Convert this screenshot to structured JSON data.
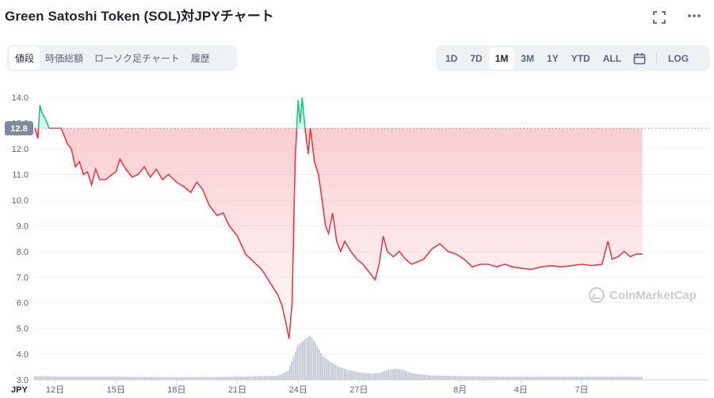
{
  "header": {
    "title": "Green Satoshi Token (SOL)対JPYチャート",
    "expand_icon": "expand-icon",
    "more_icon": "more-icon"
  },
  "tabs": [
    {
      "label": "値段",
      "active": true
    },
    {
      "label": "時価総額",
      "active": false
    },
    {
      "label": "ローソク足チャート",
      "active": false
    },
    {
      "label": "履歴",
      "active": false
    }
  ],
  "ranges": [
    {
      "label": "1D",
      "active": false
    },
    {
      "label": "7D",
      "active": false
    },
    {
      "label": "1M",
      "active": true
    },
    {
      "label": "3M",
      "active": false
    },
    {
      "label": "1Y",
      "active": false
    },
    {
      "label": "YTD",
      "active": false
    },
    {
      "label": "ALL",
      "active": false
    }
  ],
  "calendar_icon": "calendar-icon",
  "log_label": "LOG",
  "watermark": "CoinMarketCap",
  "colors": {
    "up": "#16c784",
    "down": "#ea3943",
    "volume": "#c3c8d4",
    "reference": "#808a9d"
  },
  "chart_data": {
    "type": "line",
    "currency_label": "JPY",
    "reference_value": 12.8,
    "reference_label": "12.8",
    "ylim": [
      3.0,
      14.5
    ],
    "yticks": [
      3.0,
      4.0,
      5.0,
      6.0,
      7.0,
      8.0,
      9.0,
      10.0,
      11.0,
      12.0,
      13.0,
      14.0
    ],
    "ytick_labels": [
      "3.0",
      "4.0",
      "5.0",
      "6.0",
      "7.0",
      "8.0",
      "9.0",
      "10.0",
      "11.0",
      "12.0",
      "13.0",
      "14.0"
    ],
    "xlim": [
      0,
      33.3
    ],
    "xticks": [
      {
        "x": 1.0,
        "label": "12日"
      },
      {
        "x": 4.0,
        "label": "15日"
      },
      {
        "x": 7.0,
        "label": "18日"
      },
      {
        "x": 10.0,
        "label": "21日"
      },
      {
        "x": 13.0,
        "label": "24日"
      },
      {
        "x": 16.0,
        "label": "27日"
      },
      {
        "x": 21.0,
        "label": "8月"
      },
      {
        "x": 24.0,
        "label": "4日"
      },
      {
        "x": 27.0,
        "label": "7日"
      }
    ],
    "price": [
      [
        0.0,
        12.8
      ],
      [
        0.15,
        12.4
      ],
      [
        0.25,
        13.7
      ],
      [
        0.35,
        13.4
      ],
      [
        0.5,
        13.2
      ],
      [
        0.7,
        12.8
      ],
      [
        1.0,
        12.8
      ],
      [
        1.3,
        12.8
      ],
      [
        1.6,
        12.2
      ],
      [
        1.8,
        12.0
      ],
      [
        2.0,
        11.3
      ],
      [
        2.2,
        11.5
      ],
      [
        2.4,
        11.0
      ],
      [
        2.6,
        11.1
      ],
      [
        2.8,
        10.6
      ],
      [
        3.0,
        11.2
      ],
      [
        3.2,
        10.8
      ],
      [
        3.5,
        10.8
      ],
      [
        3.8,
        11.0
      ],
      [
        4.0,
        11.1
      ],
      [
        4.2,
        11.6
      ],
      [
        4.5,
        11.2
      ],
      [
        4.8,
        10.9
      ],
      [
        5.1,
        11.0
      ],
      [
        5.4,
        11.3
      ],
      [
        5.7,
        10.9
      ],
      [
        6.0,
        11.2
      ],
      [
        6.3,
        10.8
      ],
      [
        6.6,
        11.0
      ],
      [
        7.0,
        10.7
      ],
      [
        7.4,
        10.5
      ],
      [
        7.7,
        10.3
      ],
      [
        8.0,
        10.7
      ],
      [
        8.3,
        10.4
      ],
      [
        8.6,
        9.8
      ],
      [
        9.0,
        9.4
      ],
      [
        9.3,
        9.5
      ],
      [
        9.6,
        9.0
      ],
      [
        10.0,
        8.6
      ],
      [
        10.4,
        7.9
      ],
      [
        10.8,
        7.6
      ],
      [
        11.2,
        7.3
      ],
      [
        11.6,
        6.8
      ],
      [
        12.0,
        6.3
      ],
      [
        12.2,
        5.9
      ],
      [
        12.4,
        5.2
      ],
      [
        12.55,
        4.6
      ],
      [
        12.7,
        6.0
      ],
      [
        12.85,
        11.5
      ],
      [
        13.0,
        13.9
      ],
      [
        13.1,
        13.0
      ],
      [
        13.2,
        14.0
      ],
      [
        13.35,
        12.7
      ],
      [
        13.5,
        11.8
      ],
      [
        13.6,
        12.8
      ],
      [
        13.8,
        11.5
      ],
      [
        14.0,
        11.0
      ],
      [
        14.2,
        9.9
      ],
      [
        14.35,
        9.0
      ],
      [
        14.5,
        8.7
      ],
      [
        14.7,
        9.5
      ],
      [
        14.9,
        8.4
      ],
      [
        15.1,
        8.0
      ],
      [
        15.3,
        8.4
      ],
      [
        15.6,
        8.0
      ],
      [
        15.9,
        7.7
      ],
      [
        16.2,
        7.5
      ],
      [
        16.5,
        7.2
      ],
      [
        16.8,
        6.9
      ],
      [
        17.0,
        7.5
      ],
      [
        17.2,
        8.6
      ],
      [
        17.4,
        8.0
      ],
      [
        17.7,
        7.8
      ],
      [
        18.0,
        8.0
      ],
      [
        18.3,
        7.7
      ],
      [
        18.6,
        7.5
      ],
      [
        18.9,
        7.6
      ],
      [
        19.2,
        7.7
      ],
      [
        19.6,
        8.1
      ],
      [
        20.0,
        8.3
      ],
      [
        20.4,
        8.0
      ],
      [
        20.8,
        7.9
      ],
      [
        21.2,
        7.7
      ],
      [
        21.6,
        7.4
      ],
      [
        22.0,
        7.5
      ],
      [
        22.4,
        7.5
      ],
      [
        22.8,
        7.4
      ],
      [
        23.2,
        7.5
      ],
      [
        23.6,
        7.4
      ],
      [
        24.0,
        7.35
      ],
      [
        24.5,
        7.3
      ],
      [
        25.0,
        7.4
      ],
      [
        25.5,
        7.45
      ],
      [
        26.0,
        7.4
      ],
      [
        26.5,
        7.45
      ],
      [
        27.0,
        7.5
      ],
      [
        27.5,
        7.45
      ],
      [
        28.0,
        7.5
      ],
      [
        28.3,
        8.4
      ],
      [
        28.5,
        7.7
      ],
      [
        28.8,
        7.8
      ],
      [
        29.1,
        8.0
      ],
      [
        29.4,
        7.8
      ],
      [
        29.7,
        7.9
      ],
      [
        30.0,
        7.9
      ]
    ],
    "volume_rel": [
      [
        0.0,
        0.08
      ],
      [
        2.0,
        0.07
      ],
      [
        4.0,
        0.07
      ],
      [
        6.0,
        0.06
      ],
      [
        8.0,
        0.06
      ],
      [
        10.0,
        0.07
      ],
      [
        12.0,
        0.09
      ],
      [
        12.5,
        0.2
      ],
      [
        12.8,
        0.55
      ],
      [
        13.0,
        0.8
      ],
      [
        13.3,
        0.9
      ],
      [
        13.6,
        1.0
      ],
      [
        13.9,
        0.8
      ],
      [
        14.2,
        0.55
      ],
      [
        14.6,
        0.4
      ],
      [
        15.0,
        0.3
      ],
      [
        15.5,
        0.22
      ],
      [
        16.0,
        0.17
      ],
      [
        16.5,
        0.14
      ],
      [
        17.0,
        0.15
      ],
      [
        17.4,
        0.22
      ],
      [
        17.8,
        0.25
      ],
      [
        18.2,
        0.22
      ],
      [
        18.6,
        0.15
      ],
      [
        19.5,
        0.1
      ],
      [
        21.0,
        0.08
      ],
      [
        24.0,
        0.07
      ],
      [
        27.0,
        0.07
      ],
      [
        30.0,
        0.07
      ]
    ]
  }
}
